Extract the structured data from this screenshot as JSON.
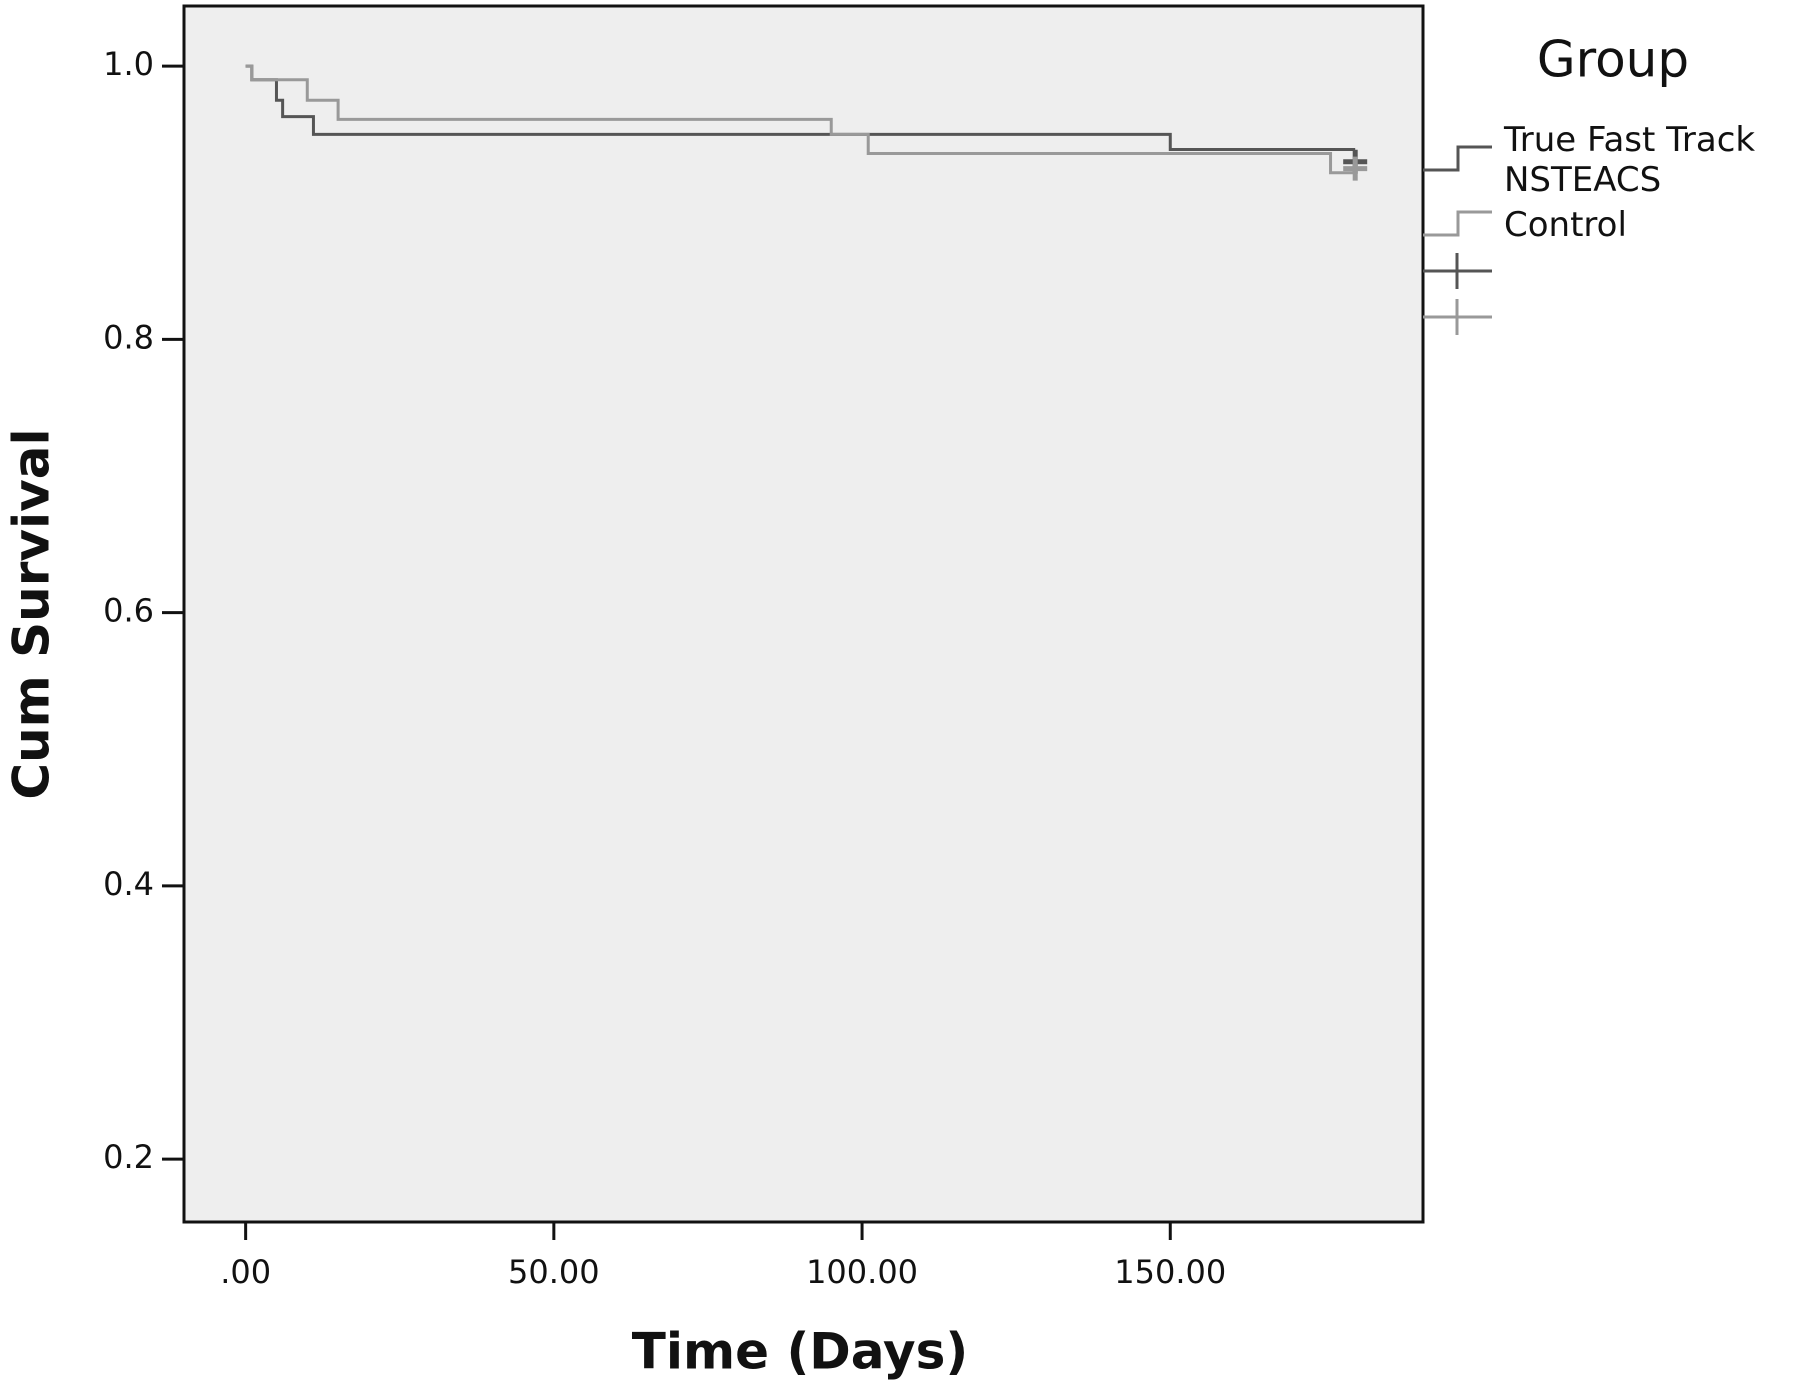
{
  "chart_data": {
    "type": "step",
    "x_label": "Time (Days)",
    "y_label": "Cum Survival",
    "legend_title": "Group",
    "xlim": [
      -10,
      191
    ],
    "ylim": [
      0.154,
      1.044
    ],
    "xticks": [
      {
        "value": 0,
        "label": ".00"
      },
      {
        "value": 50,
        "label": "50.00"
      },
      {
        "value": 100,
        "label": "100.00"
      },
      {
        "value": 150,
        "label": "150.00"
      }
    ],
    "yticks": [
      0.2,
      0.4,
      0.6,
      0.8,
      {
        "value": 1,
        "label": "1.0"
      }
    ],
    "legend": "right",
    "series": [
      {
        "name": "True Fast Track NSTEACS",
        "color": "#555555",
        "x": [
          0,
          1,
          5,
          6,
          11,
          150,
          180
        ],
        "values": [
          1.0,
          0.99,
          0.975,
          0.963,
          0.95,
          0.939,
          0.939
        ],
        "censor_x": [
          180
        ],
        "censor_y": [
          0.93
        ]
      },
      {
        "name": "Control",
        "color": "#999999",
        "x": [
          0,
          1,
          10,
          15,
          95,
          101,
          176,
          180
        ],
        "values": [
          1.0,
          0.99,
          0.975,
          0.961,
          0.95,
          0.936,
          0.922,
          0.922
        ],
        "censor_x": [
          180
        ],
        "censor_y": [
          0.925
        ]
      }
    ]
  }
}
